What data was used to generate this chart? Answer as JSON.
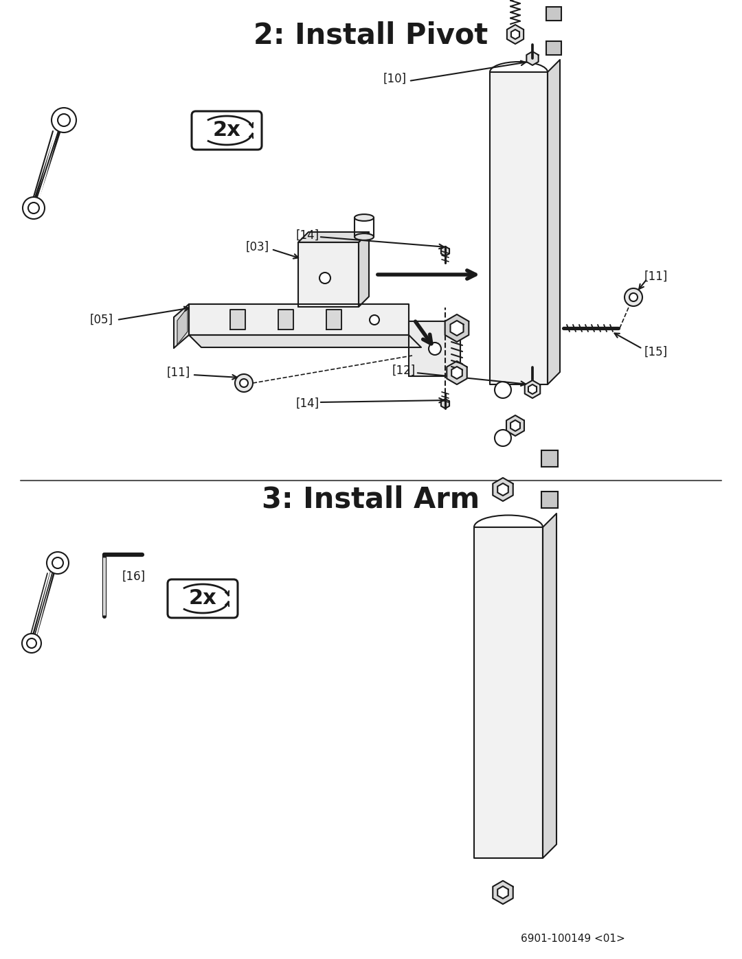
{
  "title1": "2: Install Pivot",
  "title2": "3: Install Arm",
  "footer": "6901-100149 <01>",
  "bg_color": "#ffffff",
  "line_color": "#1a1a1a",
  "title_fontsize": 30,
  "label_fontsize": 12,
  "footer_fontsize": 11
}
